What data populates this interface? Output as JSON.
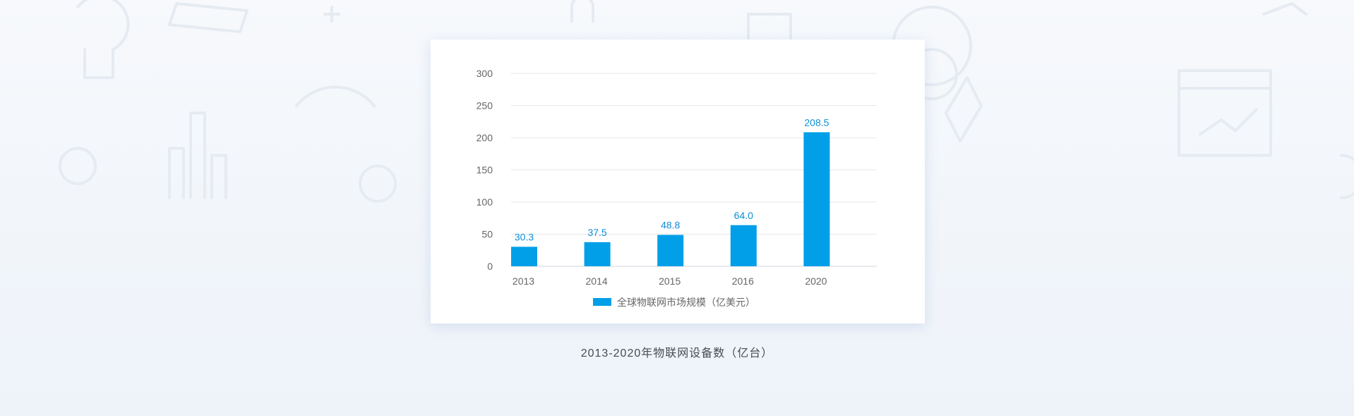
{
  "caption": "2013-2020年物联网设备数（亿台）",
  "chart_data": {
    "type": "bar",
    "categories": [
      "2013",
      "2014",
      "2015",
      "2016",
      "2020"
    ],
    "series": [
      {
        "name": "全球物联网市场规模（亿美元）",
        "values": [
          30.3,
          37.5,
          48.8,
          64.0,
          208.5
        ],
        "labels": [
          "30.3",
          "37.5",
          "48.8",
          "64.0",
          "208.5"
        ],
        "color": "#009fe8"
      }
    ],
    "yticks": [
      "0",
      "50",
      "100",
      "150",
      "200",
      "250",
      "300"
    ],
    "ylim": [
      0,
      300
    ],
    "grid": true,
    "legend": "bottom-center"
  },
  "colors": {
    "bar": "#009fe8",
    "value_label": "#0b8fd6",
    "grid": "#e3e7ec",
    "axis": "#cfd5dc"
  }
}
